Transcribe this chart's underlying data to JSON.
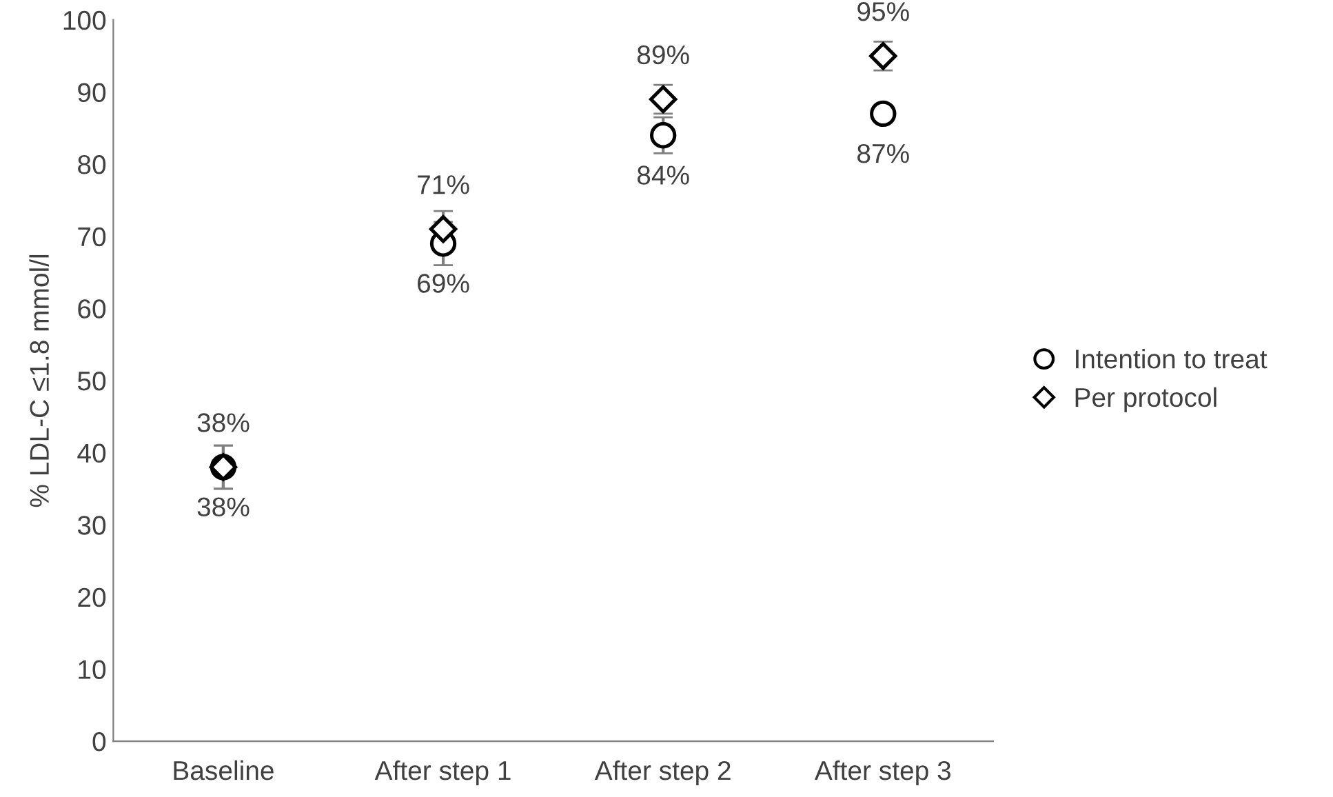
{
  "chart_data": {
    "type": "scatter",
    "ylabel": "% LDL-C ≤1.8 mmol/l",
    "categories": [
      "Baseline",
      "After step 1",
      "After step 2",
      "After step 3"
    ],
    "series": [
      {
        "name": "Intention to treat",
        "color": "#000000",
        "marker": "circle",
        "values": [
          38,
          69,
          84,
          87
        ],
        "errors": [
          3,
          3,
          2.5,
          null
        ],
        "value_labels": [
          "38%",
          "69%",
          "84%",
          "87%"
        ]
      },
      {
        "name": "Per protocol",
        "color": "#000000",
        "marker": "diamond",
        "values": [
          38,
          71,
          89,
          95
        ],
        "errors": [
          3,
          2.5,
          2,
          2
        ],
        "value_labels": [
          "38%",
          "71%",
          "89%",
          "95%"
        ]
      }
    ],
    "ylim": [
      0,
      100
    ],
    "yticks": [
      0,
      10,
      20,
      30,
      40,
      50,
      60,
      70,
      80,
      90,
      100
    ],
    "grid": false,
    "legend": "right"
  }
}
